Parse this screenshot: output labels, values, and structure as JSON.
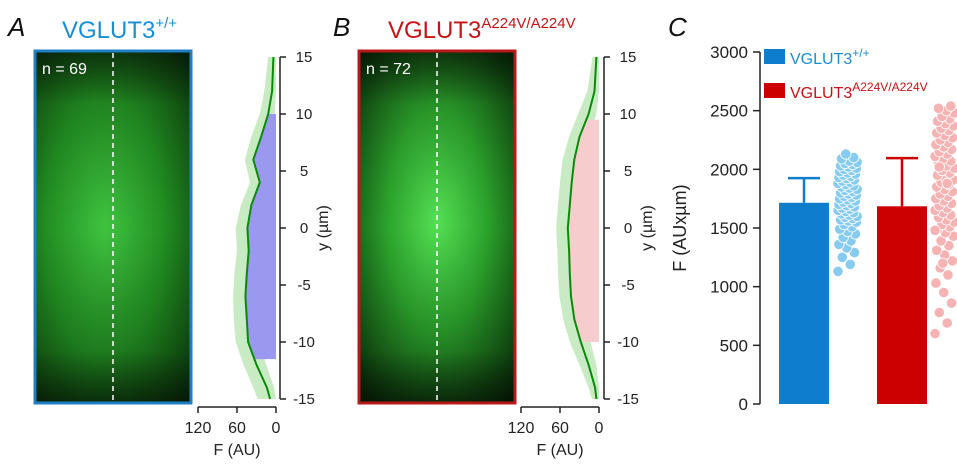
{
  "panels": {
    "a": {
      "letter": "A",
      "title_base": "VGLUT3",
      "title_sup": "+/+",
      "title_color": "#1a8fcf",
      "border_color": "#1f7fc4",
      "n_label": "n = 69",
      "fill_color": "#9a98ef"
    },
    "b": {
      "letter": "B",
      "title_base": "VGLUT3",
      "title_sup": "A224V/A224V",
      "title_color": "#c41414",
      "border_color": "#b81818",
      "n_label": "n = 72",
      "fill_color": "#f6cccc"
    },
    "c": {
      "letter": "C"
    }
  },
  "profile_axis": {
    "y_label": "y (µm)",
    "x_label": "F (AU)",
    "y_ticks": [
      "15",
      "10",
      "5",
      "0",
      "-5",
      "-10",
      "-15"
    ],
    "x_ticks": [
      "120",
      "60",
      "0"
    ]
  },
  "chart_data": [
    {
      "type": "line",
      "panel": "A",
      "xlabel": "F (AU)",
      "ylabel": "y (µm)",
      "xlim": [
        120,
        0
      ],
      "ylim": [
        -15,
        15
      ],
      "y": [
        15,
        12,
        10,
        8,
        6,
        4,
        2,
        0,
        -2,
        -4,
        -6,
        -8,
        -10,
        -12,
        -14,
        -15
      ],
      "mean": [
        4,
        6,
        12,
        23,
        35,
        25,
        38,
        44,
        42,
        45,
        47,
        45,
        43,
        30,
        14,
        9
      ],
      "band_low": [
        0,
        0,
        2,
        12,
        25,
        15,
        26,
        31,
        30,
        32,
        33,
        30,
        26,
        15,
        3,
        0
      ],
      "band_high": [
        12,
        18,
        25,
        38,
        48,
        40,
        54,
        62,
        60,
        64,
        66,
        65,
        62,
        50,
        35,
        28
      ],
      "fill_to_y_min": -11.5,
      "fill_to_y_max": 10
    },
    {
      "type": "line",
      "panel": "B",
      "xlabel": "F (AU)",
      "ylabel": "y (µm)",
      "xlim": [
        120,
        0
      ],
      "ylim": [
        -15,
        15
      ],
      "y": [
        15,
        12,
        10,
        8,
        6,
        4,
        2,
        0,
        -2,
        -4,
        -6,
        -8,
        -10,
        -12,
        -14,
        -15
      ],
      "mean": [
        4,
        7,
        16,
        30,
        38,
        42,
        45,
        48,
        46,
        45,
        43,
        38,
        28,
        16,
        6,
        4
      ],
      "band_low": [
        0,
        0,
        4,
        16,
        23,
        27,
        29,
        31,
        30,
        29,
        27,
        22,
        13,
        4,
        0,
        0
      ],
      "band_high": [
        10,
        18,
        32,
        46,
        56,
        60,
        63,
        66,
        64,
        63,
        61,
        55,
        45,
        30,
        16,
        11
      ],
      "fill_to_y_min": -10,
      "fill_to_y_max": 9.5
    },
    {
      "type": "bar",
      "panel": "C",
      "ylabel": "F (AUxµm)",
      "ylim": [
        0,
        3000
      ],
      "y_ticks": [
        "0",
        "500",
        "1000",
        "1500",
        "2000",
        "2500",
        "3000"
      ],
      "categories": [
        "VGLUT3+/+",
        "VGLUT3A224V/A224V"
      ],
      "values": [
        1715,
        1685
      ],
      "error": [
        210,
        410
      ],
      "legend": [
        {
          "base": "VGLUT3",
          "sup": "+/+",
          "color": "#0d7dcc",
          "text_color": "#1a8fcf"
        },
        {
          "base": "VGLUT3",
          "sup": "A224V/A224V",
          "color": "#cc0000",
          "text_color": "#c41414"
        }
      ],
      "legend_position": "top",
      "bar_colors": [
        "#0d7dcc",
        "#cc0000"
      ],
      "dot_colors": [
        "#87ccf0",
        "#f5b3b3"
      ],
      "points": [
        [
          1130,
          1190,
          1250,
          1290,
          1330,
          1360,
          1390,
          1420,
          1450,
          1470,
          1490,
          1510,
          1530,
          1550,
          1560,
          1570,
          1580,
          1590,
          1600,
          1610,
          1620,
          1630,
          1640,
          1650,
          1660,
          1670,
          1680,
          1690,
          1700,
          1710,
          1720,
          1730,
          1740,
          1750,
          1760,
          1770,
          1780,
          1790,
          1800,
          1810,
          1820,
          1830,
          1840,
          1850,
          1860,
          1870,
          1880,
          1890,
          1900,
          1910,
          1920,
          1930,
          1940,
          1950,
          1960,
          1970,
          1980,
          1990,
          2000,
          2010,
          2020,
          2030,
          2040,
          2050,
          2060,
          2070,
          2090,
          2100,
          2130
        ],
        [
          600,
          690,
          780,
          860,
          950,
          1030,
          1100,
          1160,
          1220,
          1270,
          1310,
          1350,
          1390,
          1430,
          1460,
          1490,
          1510,
          1530,
          1550,
          1570,
          1590,
          1610,
          1630,
          1650,
          1670,
          1690,
          1710,
          1730,
          1750,
          1770,
          1790,
          1810,
          1830,
          1850,
          1870,
          1890,
          1910,
          1930,
          1950,
          1970,
          1990,
          2010,
          2030,
          2050,
          2070,
          2090,
          2110,
          2130,
          2150,
          2170,
          2190,
          2210,
          2230,
          2250,
          2270,
          2290,
          2310,
          2330,
          2350,
          2370,
          2390,
          2410,
          2430,
          2450,
          2480,
          2500,
          2520,
          2540,
          1200,
          1480,
          1880,
          2020
        ]
      ]
    }
  ]
}
